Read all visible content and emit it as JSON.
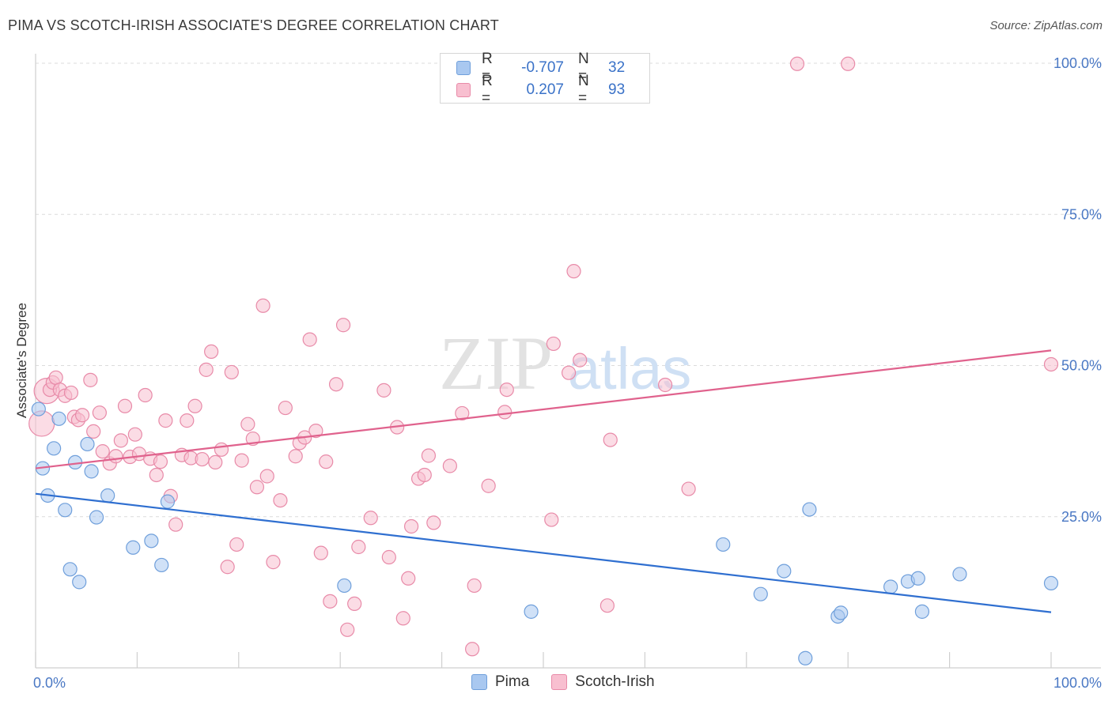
{
  "title": "PIMA VS SCOTCH-IRISH ASSOCIATE'S DEGREE CORRELATION CHART",
  "source": "Source: ZipAtlas.com",
  "watermark": {
    "zip": "ZIP",
    "atlas": "atlas"
  },
  "legend": {
    "rows": [
      {
        "r_label": "R =",
        "r_value": "-0.707",
        "n_label": "N =",
        "n_value": "32",
        "color": "#a9c8f0",
        "border": "#6f9fdb"
      },
      {
        "r_label": "R =",
        "r_value": "0.207",
        "n_label": "N =",
        "n_value": "93",
        "color": "#f8bfd0",
        "border": "#e88aa8"
      }
    ]
  },
  "bottom_legend": [
    {
      "label": "Pima",
      "color": "#a9c8f0",
      "border": "#6f9fdb"
    },
    {
      "label": "Scotch-Irish",
      "color": "#f8bfd0",
      "border": "#e88aa8"
    }
  ],
  "chart_data": {
    "type": "scatter",
    "title": "PIMA VS SCOTCH-IRISH ASSOCIATE'S DEGREE CORRELATION CHART",
    "xlabel": "",
    "ylabel": "Associate's Degree",
    "xlim": [
      0,
      100
    ],
    "ylim": [
      0,
      100
    ],
    "x_tick_labels": [
      "0.0%",
      "100.0%"
    ],
    "y_ticks": [
      25,
      50,
      75,
      100
    ],
    "y_tick_labels": [
      "25.0%",
      "50.0%",
      "75.0%",
      "100.0%"
    ],
    "grid": "horizontal dashed",
    "legend_position": "top-center",
    "series": [
      {
        "name": "Pima",
        "color": "#a9c8f0",
        "edge": "#6f9fdb",
        "line_color": "#2f6fd0",
        "trend": [
          [
            0,
            28.8
          ],
          [
            100,
            9.2
          ]
        ],
        "points": [
          [
            0.3,
            42.8
          ],
          [
            0.7,
            33.0
          ],
          [
            1.2,
            28.5
          ],
          [
            1.8,
            36.3
          ],
          [
            2.3,
            41.2
          ],
          [
            2.9,
            26.1
          ],
          [
            3.4,
            16.3
          ],
          [
            3.9,
            34.0
          ],
          [
            4.3,
            14.2
          ],
          [
            5.1,
            37.0
          ],
          [
            5.5,
            32.5
          ],
          [
            6.0,
            24.9
          ],
          [
            7.1,
            28.5
          ],
          [
            9.6,
            19.9
          ],
          [
            11.4,
            21.0
          ],
          [
            12.4,
            17.0
          ],
          [
            13.0,
            27.5
          ],
          [
            30.4,
            13.6
          ],
          [
            48.8,
            9.3
          ],
          [
            67.7,
            20.4
          ],
          [
            71.4,
            12.2
          ],
          [
            73.7,
            16.0
          ],
          [
            75.8,
            1.6
          ],
          [
            76.2,
            26.2
          ],
          [
            79.0,
            8.5
          ],
          [
            79.3,
            9.1
          ],
          [
            84.2,
            13.4
          ],
          [
            85.9,
            14.3
          ],
          [
            86.9,
            14.8
          ],
          [
            87.3,
            9.3
          ],
          [
            91.0,
            15.5
          ],
          [
            100.0,
            14.0
          ]
        ]
      },
      {
        "name": "Scotch-Irish",
        "color": "#f8bfd0",
        "edge": "#e88aa8",
        "line_color": "#e0628d",
        "trend": [
          [
            0,
            33.0
          ],
          [
            100,
            52.5
          ]
        ],
        "points": [
          [
            0.6,
            40.4,
            "large"
          ],
          [
            1.1,
            45.8,
            "large"
          ],
          [
            1.4,
            46.0
          ],
          [
            1.7,
            47.2
          ],
          [
            2.0,
            48.0
          ],
          [
            2.4,
            46.0
          ],
          [
            2.9,
            45.0
          ],
          [
            3.5,
            45.5
          ],
          [
            3.8,
            41.5
          ],
          [
            4.2,
            41.0
          ],
          [
            4.6,
            41.8
          ],
          [
            5.4,
            47.6
          ],
          [
            5.7,
            39.1
          ],
          [
            6.3,
            42.2
          ],
          [
            6.6,
            35.8
          ],
          [
            7.3,
            33.8
          ],
          [
            7.9,
            35.0
          ],
          [
            8.4,
            37.6
          ],
          [
            8.8,
            43.3
          ],
          [
            9.3,
            34.9
          ],
          [
            9.8,
            38.6
          ],
          [
            10.2,
            35.4
          ],
          [
            10.8,
            45.1
          ],
          [
            11.3,
            34.6
          ],
          [
            11.9,
            31.9
          ],
          [
            12.3,
            34.1
          ],
          [
            12.8,
            40.9
          ],
          [
            13.3,
            28.4
          ],
          [
            13.8,
            23.7
          ],
          [
            14.4,
            35.2
          ],
          [
            14.9,
            40.9
          ],
          [
            15.3,
            34.7
          ],
          [
            15.7,
            43.3
          ],
          [
            16.4,
            34.5
          ],
          [
            16.8,
            49.3
          ],
          [
            17.3,
            52.3
          ],
          [
            17.7,
            34.0
          ],
          [
            18.3,
            36.1
          ],
          [
            18.9,
            16.7
          ],
          [
            19.3,
            48.9
          ],
          [
            19.8,
            20.4
          ],
          [
            20.3,
            34.3
          ],
          [
            20.9,
            40.3
          ],
          [
            21.4,
            37.9
          ],
          [
            21.8,
            29.9
          ],
          [
            22.4,
            59.9
          ],
          [
            22.8,
            31.7
          ],
          [
            23.4,
            17.5
          ],
          [
            24.1,
            27.7
          ],
          [
            24.6,
            43.0
          ],
          [
            25.6,
            35.0
          ],
          [
            26.0,
            37.2
          ],
          [
            26.5,
            38.1
          ],
          [
            27.0,
            54.3
          ],
          [
            27.6,
            39.2
          ],
          [
            28.1,
            19.0
          ],
          [
            28.6,
            34.1
          ],
          [
            29.0,
            11.0
          ],
          [
            29.6,
            46.9
          ],
          [
            30.3,
            56.7
          ],
          [
            30.7,
            6.3
          ],
          [
            31.4,
            10.6
          ],
          [
            31.8,
            20.0
          ],
          [
            33.0,
            24.8
          ],
          [
            34.3,
            45.9
          ],
          [
            34.8,
            18.3
          ],
          [
            35.6,
            39.8
          ],
          [
            36.2,
            8.2
          ],
          [
            36.7,
            14.8
          ],
          [
            37.0,
            23.4
          ],
          [
            37.7,
            31.3
          ],
          [
            38.3,
            31.9
          ],
          [
            38.7,
            35.1
          ],
          [
            39.2,
            24.0
          ],
          [
            40.8,
            33.4
          ],
          [
            42.0,
            42.1
          ],
          [
            43.2,
            13.6
          ],
          [
            44.6,
            30.1
          ],
          [
            46.2,
            42.3
          ],
          [
            46.4,
            46.0
          ],
          [
            50.8,
            24.5
          ],
          [
            51.0,
            53.6
          ],
          [
            52.5,
            48.8
          ],
          [
            53.0,
            65.6
          ],
          [
            53.6,
            50.9
          ],
          [
            56.3,
            10.3
          ],
          [
            56.6,
            37.7
          ],
          [
            62.0,
            46.8
          ],
          [
            64.3,
            29.6
          ],
          [
            75.0,
            99.9
          ],
          [
            80.0,
            99.9
          ],
          [
            100.0,
            50.2
          ],
          [
            43.0,
            3.1
          ]
        ]
      }
    ]
  }
}
